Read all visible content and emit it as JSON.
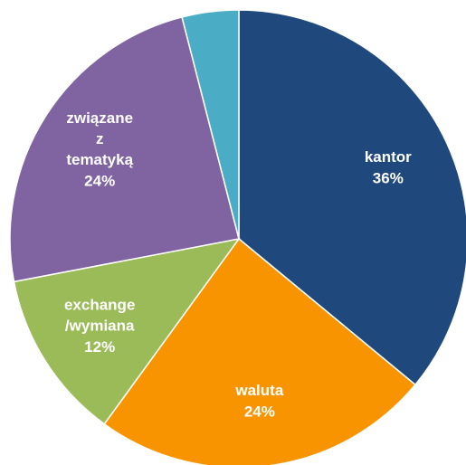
{
  "chart_data": {
    "type": "pie",
    "categories": [
      "kantor",
      "waluta",
      "exchange /wymiana",
      "związane z tematyką",
      null
    ],
    "values": [
      36,
      24,
      12,
      24,
      4
    ],
    "value_labels": [
      "36%",
      "24%",
      "12%",
      "24%",
      null
    ],
    "colors": [
      "#1f497d",
      "#f79400",
      "#9bbb59",
      "#8064a2",
      "#4bacc6"
    ]
  }
}
